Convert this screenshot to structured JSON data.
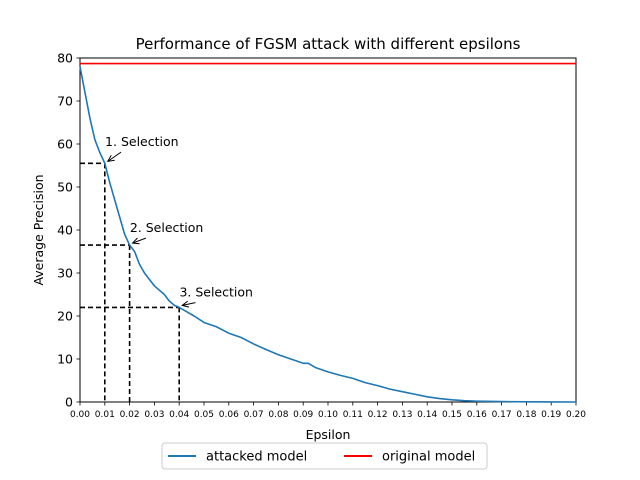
{
  "chart_data": {
    "type": "line",
    "title": "Performance of FGSM attack with different epsilons",
    "xlabel": "Epsilon",
    "ylabel": "Average Precision",
    "xlim": [
      0,
      0.2
    ],
    "ylim": [
      0,
      80
    ],
    "xticks": [
      "0.00",
      "0.01",
      "0.02",
      "0.03",
      "0.04",
      "0.05",
      "0.06",
      "0.07",
      "0.08",
      "0.09",
      "0.10",
      "0.11",
      "0.12",
      "0.13",
      "0.14",
      "0.15",
      "0.16",
      "0.17",
      "0.18",
      "0.19",
      "0.20"
    ],
    "xtick_values": [
      0,
      0.01,
      0.02,
      0.03,
      0.04,
      0.05,
      0.06,
      0.07,
      0.08,
      0.09,
      0.1,
      0.11,
      0.12,
      0.13,
      0.14,
      0.15,
      0.16,
      0.17,
      0.18,
      0.19,
      0.2
    ],
    "yticks": [
      "0",
      "10",
      "20",
      "30",
      "40",
      "50",
      "60",
      "70",
      "80"
    ],
    "ytick_values": [
      0,
      10,
      20,
      30,
      40,
      50,
      60,
      70,
      80
    ],
    "grid": false,
    "legend_position": "bottom-center, outside plot",
    "series": [
      {
        "name": "attacked model",
        "color": "#1f77b4",
        "x": [
          0,
          0.002,
          0.004,
          0.006,
          0.008,
          0.01,
          0.012,
          0.014,
          0.016,
          0.018,
          0.02,
          0.022,
          0.024,
          0.026,
          0.028,
          0.03,
          0.032,
          0.034,
          0.036,
          0.038,
          0.04,
          0.043,
          0.046,
          0.05,
          0.055,
          0.06,
          0.065,
          0.07,
          0.075,
          0.08,
          0.085,
          0.09,
          0.092,
          0.095,
          0.1,
          0.105,
          0.11,
          0.115,
          0.12,
          0.125,
          0.13,
          0.135,
          0.14,
          0.145,
          0.15,
          0.155,
          0.16,
          0.17,
          0.18,
          0.19,
          0.2
        ],
        "y": [
          78,
          72,
          66,
          61,
          58,
          55.5,
          51,
          47,
          43,
          39,
          36.5,
          35,
          32,
          30,
          28.5,
          27,
          26,
          25,
          23.5,
          22.5,
          22,
          21,
          20,
          18.5,
          17.5,
          16,
          15,
          13.5,
          12.2,
          11,
          10,
          9,
          9,
          8,
          7,
          6.2,
          5.5,
          4.5,
          3.8,
          3,
          2.4,
          1.8,
          1.2,
          0.8,
          0.5,
          0.3,
          0.2,
          0.1,
          0.05,
          0.02,
          0
        ]
      },
      {
        "name": "original model",
        "color": "#ff0000",
        "x": [
          0,
          0.2
        ],
        "y": [
          78.7,
          78.7
        ]
      }
    ],
    "annotations": [
      {
        "text": "1. Selection",
        "x": 0.01,
        "y": 55.5,
        "text_x": 0.0101,
        "text_y": 59.5
      },
      {
        "text": "2. Selection",
        "x": 0.02,
        "y": 36.5,
        "text_x": 0.0201,
        "text_y": 39.5
      },
      {
        "text": "3. Selection",
        "x": 0.04,
        "y": 22,
        "text_x": 0.0401,
        "text_y": 24.5
      }
    ]
  }
}
